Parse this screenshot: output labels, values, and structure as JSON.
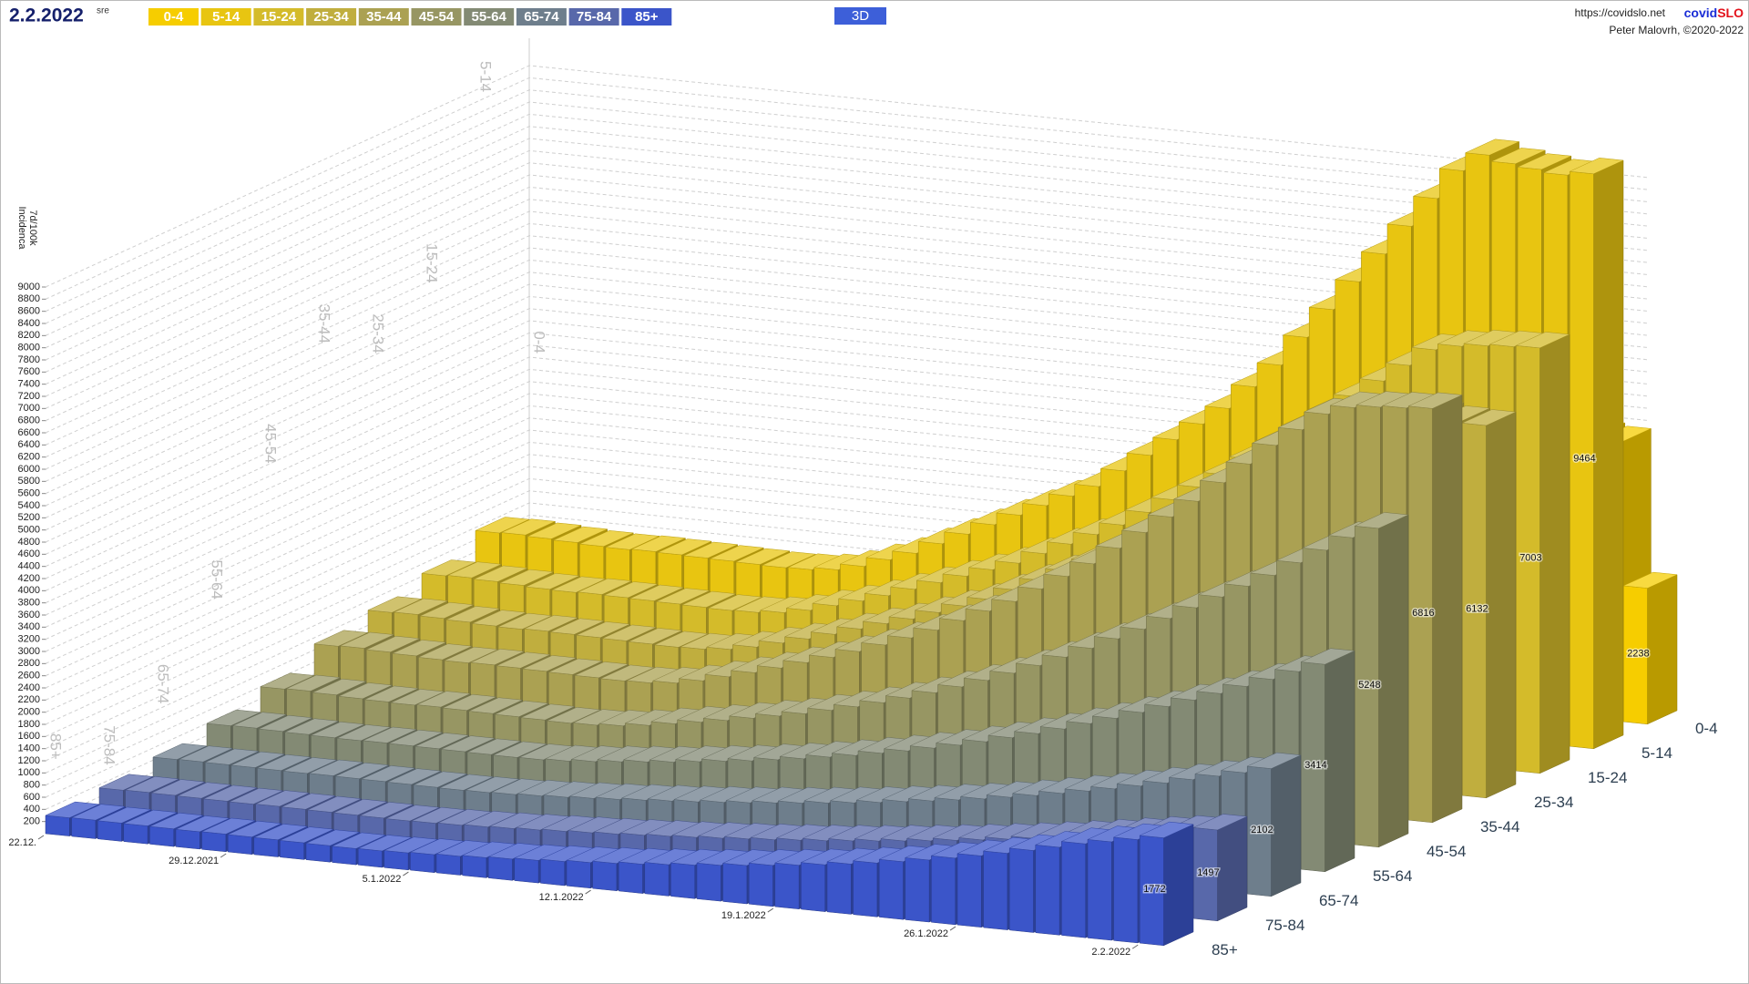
{
  "chart_data": {
    "type": "bar3d",
    "title": "2.2.2022",
    "subtitle": "sre",
    "mode_button": "3D",
    "source_url": "https://covidslo.net",
    "brand": [
      "covid",
      "SLO"
    ],
    "credit": "Peter Malovrh, ©2020-2022",
    "ylabel": [
      "Incidenca",
      "7d/100k"
    ],
    "ylim": [
      0,
      9000
    ],
    "yticks": [
      200,
      400,
      600,
      800,
      1000,
      1200,
      1400,
      1600,
      1800,
      2000,
      2200,
      2400,
      2600,
      2800,
      3000,
      3200,
      3400,
      3600,
      3800,
      4000,
      4200,
      4400,
      4600,
      4800,
      5000,
      5200,
      5400,
      5600,
      5800,
      6000,
      6200,
      6400,
      6600,
      6800,
      7000,
      7200,
      7400,
      7600,
      7800,
      8000,
      8200,
      8400,
      8600,
      8800,
      9000
    ],
    "grid": true,
    "categories": [
      "22.12.",
      null,
      null,
      null,
      null,
      null,
      null,
      "29.12.2021",
      null,
      null,
      null,
      null,
      null,
      null,
      "5.1.2022",
      null,
      null,
      null,
      null,
      null,
      null,
      "12.1.2022",
      null,
      null,
      null,
      null,
      null,
      null,
      "19.1.2022",
      null,
      null,
      null,
      null,
      null,
      null,
      "26.1.2022",
      null,
      null,
      null,
      null,
      null,
      null,
      "2.2.2022"
    ],
    "series": [
      {
        "name": "0-4",
        "color": "#f6cd00",
        "values": [
          1100,
          1110,
          1100,
          1090,
          1080,
          1070,
          1080,
          1070,
          1060,
          1050,
          1050,
          1040,
          1050,
          1080,
          1150,
          1250,
          1350,
          1450,
          1550,
          1650,
          1750,
          1850,
          1950,
          2050,
          2200,
          2350,
          2500,
          2650,
          2800,
          3000,
          3200,
          3400,
          3600,
          3800,
          4000,
          4200,
          4400,
          4600,
          4750,
          4700,
          4650,
          4600,
          2238
        ]
      },
      {
        "name": "5-14",
        "color": "#e8c511",
        "values": [
          1750,
          1760,
          1740,
          1720,
          1700,
          1690,
          1700,
          1690,
          1680,
          1670,
          1660,
          1650,
          1660,
          1700,
          1800,
          1950,
          2100,
          2300,
          2500,
          2700,
          2900,
          3100,
          3300,
          3500,
          3800,
          4100,
          4400,
          4700,
          5000,
          5400,
          5800,
          6300,
          6800,
          7300,
          7800,
          8300,
          8800,
          9300,
          9600,
          9500,
          9450,
          9400,
          9464
        ]
      },
      {
        "name": "15-24",
        "color": "#d4bb2a",
        "values": [
          1450,
          1460,
          1440,
          1420,
          1400,
          1390,
          1400,
          1390,
          1380,
          1370,
          1360,
          1350,
          1360,
          1400,
          1480,
          1600,
          1720,
          1850,
          2000,
          2150,
          2300,
          2450,
          2600,
          2800,
          3000,
          3200,
          3400,
          3650,
          3900,
          4150,
          4400,
          4700,
          5000,
          5300,
          5600,
          5900,
          6200,
          6500,
          6800,
          6900,
          6950,
          6980,
          7003
        ]
      },
      {
        "name": "25-34",
        "color": "#c0ae3e",
        "values": [
          1250,
          1260,
          1240,
          1220,
          1200,
          1190,
          1200,
          1190,
          1180,
          1170,
          1160,
          1150,
          1160,
          1200,
          1280,
          1390,
          1500,
          1620,
          1750,
          1880,
          2000,
          2150,
          2300,
          2450,
          2650,
          2850,
          3050,
          3250,
          3500,
          3750,
          4000,
          4300,
          4600,
          4900,
          5200,
          5500,
          5800,
          6000,
          6200,
          6250,
          6200,
          6150,
          6132
        ]
      },
      {
        "name": "35-44",
        "color": "#aba152",
        "values": [
          1100,
          1110,
          1090,
          1070,
          1050,
          1040,
          1050,
          1040,
          1030,
          1020,
          1010,
          1000,
          1010,
          1050,
          1130,
          1240,
          1350,
          1470,
          1600,
          1730,
          1870,
          2020,
          2180,
          2350,
          2550,
          2750,
          2950,
          3200,
          3450,
          3700,
          4000,
          4300,
          4600,
          4900,
          5250,
          5600,
          5950,
          6250,
          6550,
          6700,
          6750,
          6780,
          6816
        ]
      },
      {
        "name": "45-54",
        "color": "#979663",
        "values": [
          800,
          810,
          790,
          770,
          760,
          750,
          760,
          750,
          740,
          730,
          720,
          710,
          720,
          750,
          800,
          870,
          940,
          1010,
          1090,
          1170,
          1250,
          1350,
          1450,
          1560,
          1680,
          1810,
          1950,
          2100,
          2260,
          2430,
          2610,
          2800,
          3000,
          3200,
          3420,
          3640,
          3860,
          4080,
          4300,
          4550,
          4800,
          5050,
          5248
        ]
      },
      {
        "name": "55-64",
        "color": "#838a74",
        "values": [
          600,
          605,
          595,
          585,
          575,
          570,
          575,
          570,
          565,
          560,
          555,
          550,
          555,
          575,
          610,
          650,
          690,
          730,
          780,
          830,
          880,
          940,
          1000,
          1070,
          1140,
          1220,
          1300,
          1390,
          1480,
          1580,
          1690,
          1800,
          1920,
          2050,
          2180,
          2320,
          2460,
          2610,
          2760,
          2920,
          3080,
          3250,
          3414
        ]
      },
      {
        "name": "65-74",
        "color": "#6e7e8c",
        "values": [
          450,
          455,
          450,
          445,
          440,
          435,
          440,
          435,
          430,
          425,
          420,
          415,
          420,
          430,
          450,
          470,
          495,
          520,
          550,
          580,
          610,
          645,
          680,
          720,
          760,
          805,
          850,
          900,
          955,
          1010,
          1070,
          1130,
          1200,
          1270,
          1350,
          1430,
          1510,
          1600,
          1690,
          1790,
          1890,
          1990,
          2102
        ]
      },
      {
        "name": "75-84",
        "color": "#5868aa",
        "values": [
          350,
          355,
          350,
          345,
          340,
          335,
          340,
          335,
          330,
          325,
          320,
          315,
          320,
          330,
          345,
          360,
          380,
          400,
          420,
          440,
          465,
          490,
          515,
          545,
          575,
          605,
          640,
          675,
          715,
          755,
          800,
          845,
          895,
          945,
          1000,
          1055,
          1115,
          1175,
          1240,
          1305,
          1370,
          1430,
          1497
        ]
      },
      {
        "name": "85+",
        "color": "#3b55c9",
        "values": [
          300,
          305,
          300,
          295,
          290,
          285,
          290,
          285,
          280,
          275,
          270,
          265,
          270,
          280,
          295,
          310,
          330,
          350,
          370,
          395,
          420,
          450,
          480,
          515,
          550,
          590,
          630,
          675,
          720,
          770,
          825,
          885,
          950,
          1020,
          1095,
          1175,
          1260,
          1350,
          1445,
          1545,
          1620,
          1700,
          1772
        ]
      }
    ]
  }
}
